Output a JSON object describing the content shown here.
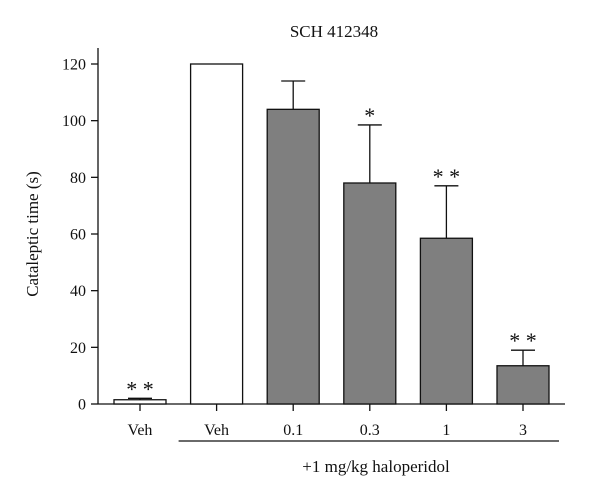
{
  "chart_data": {
    "type": "bar",
    "title": "SCH 412348",
    "xlabel": "",
    "ylabel": "Cataleptic time (s)",
    "ylim": [
      0,
      120
    ],
    "yticks": [
      0,
      20,
      40,
      60,
      80,
      100,
      120
    ],
    "grid": false,
    "legend": "none",
    "categories": [
      "Veh",
      "Veh",
      "0.1",
      "0.3",
      "1",
      "3"
    ],
    "values": [
      1.5,
      120,
      104,
      78,
      58.5,
      13.5
    ],
    "errors": [
      0.5,
      0,
      10,
      20.5,
      18.5,
      5.5
    ],
    "significance": [
      "**",
      "",
      "",
      "*",
      "**",
      "**"
    ],
    "fills": [
      "white",
      "white",
      "gray",
      "gray",
      "gray",
      "gray"
    ],
    "group_label": "+1 mg/kg haloperidol",
    "group_span": [
      1,
      5
    ]
  },
  "colors": {
    "white_bar": "#ffffff",
    "gray_bar": "#7f7f7f",
    "stroke": "#111111"
  }
}
